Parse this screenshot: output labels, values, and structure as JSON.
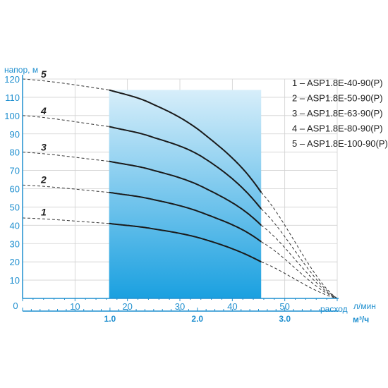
{
  "chart_data": {
    "type": "line",
    "ylabel": "напор, м",
    "xlabel": "расход",
    "x_unit_primary": "л/мин",
    "x_unit_secondary": "м³/ч",
    "xlim": [
      0,
      60
    ],
    "ylim": [
      0,
      120
    ],
    "x_ticks": [
      "0",
      "10",
      "20",
      "30",
      "40",
      "50"
    ],
    "x2_ticks": [
      "1.0",
      "2.0",
      "3.0"
    ],
    "y_ticks": [
      "10",
      "20",
      "30",
      "40",
      "50",
      "60",
      "70",
      "80",
      "90",
      "100",
      "110",
      "120"
    ],
    "grid": true,
    "legend_position": "top-right",
    "working_range": [
      16.5,
      45.5
    ],
    "series": [
      {
        "name": "1 – ASP1.8E-40-90(P)",
        "label": "1",
        "x": [
          0,
          16.5,
          25,
          35,
          45.5,
          60
        ],
        "y": [
          44,
          41,
          38,
          32,
          20,
          0
        ]
      },
      {
        "name": "2 – ASP1.8E-50-90(P)",
        "label": "2",
        "x": [
          0,
          16.5,
          25,
          35,
          45.5,
          60
        ],
        "y": [
          62,
          58,
          54,
          46,
          31,
          0
        ]
      },
      {
        "name": "3 – ASP1.8E-63-90(P)",
        "label": "3",
        "x": [
          0,
          16.5,
          25,
          35,
          45.5,
          60
        ],
        "y": [
          80,
          75,
          70,
          60,
          40,
          0
        ]
      },
      {
        "name": "4 – ASP1.8E-80-90(P)",
        "label": "4",
        "x": [
          0,
          16.5,
          25,
          35,
          45.5,
          60
        ],
        "y": [
          100,
          94,
          88,
          76,
          49,
          0
        ]
      },
      {
        "name": "5 – ASP1.8E-100-90(P)",
        "label": "5",
        "x": [
          0,
          16.5,
          25,
          35,
          45.5,
          60
        ],
        "y": [
          120,
          114,
          106,
          89,
          58,
          0
        ]
      }
    ],
    "colors": {
      "axis": "#1f8fcf",
      "curve": "#1a1a1a",
      "grid": "#d0d0d0",
      "fill_top": "#d7eefa",
      "fill_bottom": "#1aa0e0"
    }
  }
}
